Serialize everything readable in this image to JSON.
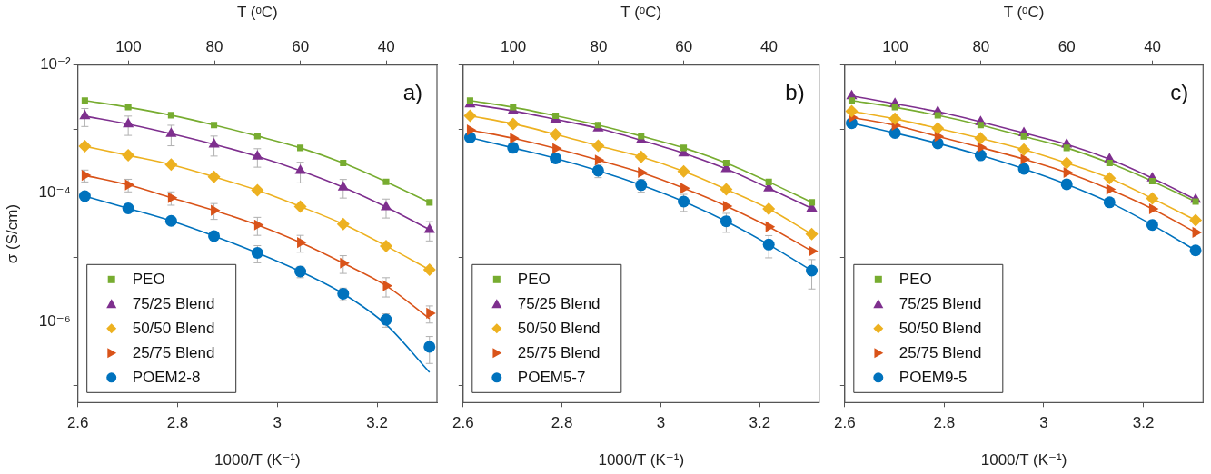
{
  "chart_data": [
    {
      "type": "scatter",
      "xlabel": "1000/T (K⁻¹)",
      "ylabel": "σ (S/cm)",
      "x2label": "T (ᵒC)",
      "annotations": [
        "a)"
      ],
      "legend": "bottom left",
      "log": "y",
      "x": [
        2.614,
        2.701,
        2.787,
        2.873,
        2.96,
        3.046,
        3.132,
        3.218,
        3.305
      ],
      "xlim": [
        2.6,
        3.32
      ],
      "xticks": [
        2.6,
        2.8,
        3,
        3.2
      ],
      "x2lim": [
        111.8,
        28.2
      ],
      "x2ticks": [
        100,
        80,
        60,
        40
      ],
      "ylim": [
        5.4e-08,
        0.01
      ],
      "yticks": [
        {
          "value": 0.01,
          "label": "10⁻²"
        },
        {
          "value": 0.001,
          "label": null
        },
        {
          "value": 0.0001,
          "label": "10⁻⁴"
        },
        {
          "value": 1e-05,
          "label": null
        },
        {
          "value": 1e-06,
          "label": "10⁻⁶"
        },
        {
          "value": 1e-07,
          "label": null
        }
      ],
      "series": [
        {
          "type": "line",
          "color": "#77ac30",
          "values": [
            0.0028,
            0.0022,
            0.00165,
            0.00116,
            0.00078,
            0.00051,
            0.000296,
            0.000151,
            7.2e-05
          ]
        },
        {
          "type": "line",
          "color": "#7e2f8e",
          "values": [
            0.0016,
            0.0012,
            0.00085,
            0.00058,
            0.000375,
            0.000225,
            0.000124,
            6.1e-05,
            2.7e-05
          ]
        },
        {
          "type": "line",
          "color": "#edb120",
          "values": [
            0.00054,
            0.00039,
            0.00028,
            0.00018,
            0.000111,
            6.2e-05,
            3.3e-05,
            1.5e-05,
            6.4e-06
          ]
        },
        {
          "type": "line",
          "color": "#d95319",
          "values": [
            0.00019,
            0.000135,
            8.5e-05,
            5.4e-05,
            3.2e-05,
            1.7e-05,
            8.1e-06,
            3.6e-06,
            1.1e-06
          ]
        },
        {
          "type": "line",
          "color": "#0072bd",
          "values": [
            9e-05,
            5.8e-05,
            3.7e-05,
            2.15e-05,
            1.17e-05,
            6e-06,
            2.7e-06,
            8.9e-07,
            1.6e-07
          ]
        },
        {
          "name": "PEO",
          "marker": "square",
          "color": "#77ac30",
          "values": [
            0.0028,
            0.0022,
            0.00165,
            0.00116,
            0.00078,
            0.00051,
            0.000296,
            0.000151,
            7.2e-05
          ]
        },
        {
          "name": "75/25 Blend",
          "marker": "triangle",
          "color": "#7e2f8e",
          "values": [
            0.0016,
            0.0012,
            0.00085,
            0.00058,
            0.000375,
            0.000225,
            0.000124,
            6.1e-05,
            2.7e-05
          ],
          "errors": [
            0.0005,
            0.0004,
            0.0003,
            0.0002,
            0.00012,
            8e-05,
            4e-05,
            2e-05,
            9e-06
          ]
        },
        {
          "name": "50/50 Blend",
          "marker": "diamond",
          "color": "#edb120",
          "values": [
            0.00054,
            0.00039,
            0.00028,
            0.00018,
            0.000111,
            6.2e-05,
            3.3e-05,
            1.5e-05,
            6.4e-06
          ]
        },
        {
          "name": "25/75 Blend",
          "marker": "triangle-right",
          "color": "#d95319",
          "values": [
            0.00019,
            0.000135,
            8.5e-05,
            5.4e-05,
            3.2e-05,
            1.7e-05,
            8.1e-06,
            3.6e-06,
            1.34e-06
          ],
          "errors": [
            4e-05,
            3e-05,
            2e-05,
            1.5e-05,
            1e-05,
            5e-06,
            2.5e-06,
            1.2e-06,
            4e-07
          ]
        },
        {
          "name": "POEM2-8",
          "marker": "circle",
          "color": "#0072bd",
          "values": [
            9e-05,
            5.8e-05,
            3.7e-05,
            2.15e-05,
            1.17e-05,
            6e-06,
            2.7e-06,
            1.06e-06,
            4e-07
          ],
          "errors": [
            null,
            null,
            null,
            null,
            3.5e-06,
            1.2e-06,
            6e-07,
            2.5e-07,
            1.8e-07
          ]
        }
      ]
    },
    {
      "type": "scatter",
      "xlabel": "1000/T (K⁻¹)",
      "x2label": "T (ᵒC)",
      "annotations": [
        "b)"
      ],
      "legend": "bottom left",
      "log": "y",
      "tick_labels": "x",
      "x": [
        2.614,
        2.701,
        2.787,
        2.873,
        2.96,
        3.046,
        3.132,
        3.218,
        3.305
      ],
      "xlim": [
        2.6,
        3.32
      ],
      "xticks": [
        2.6,
        2.8,
        3,
        3.2
      ],
      "x2lim": [
        111.8,
        28.2
      ],
      "x2ticks": [
        100,
        80,
        60,
        40
      ],
      "ylim": [
        5.4e-08,
        0.01
      ],
      "yticks": [
        {
          "value": 0.01,
          "label": null
        },
        {
          "value": 0.001,
          "label": null
        },
        {
          "value": 0.0001,
          "label": null
        },
        {
          "value": 1e-05,
          "label": null
        },
        {
          "value": 1e-06,
          "label": null
        },
        {
          "value": 1e-07,
          "label": null
        }
      ],
      "series": [
        {
          "type": "line",
          "color": "#77ac30",
          "values": [
            0.0028,
            0.0022,
            0.00162,
            0.00116,
            0.00078,
            0.00051,
            0.000296,
            0.00015,
            7.2e-05
          ]
        },
        {
          "type": "line",
          "color": "#7e2f8e",
          "values": [
            0.00245,
            0.00193,
            0.00142,
            0.00103,
            0.00067,
            0.00042,
            0.00024,
            0.00012,
            5.8e-05
          ]
        },
        {
          "type": "line",
          "color": "#edb120",
          "values": [
            0.00162,
            0.00121,
            0.00083,
            0.00055,
            0.00037,
            0.00022,
            0.000115,
            5.7e-05,
            2.3e-05
          ]
        },
        {
          "type": "line",
          "color": "#d95319",
          "values": [
            0.00097,
            0.00072,
            0.0005,
            0.00033,
            0.00021,
            0.00012,
            6.3e-05,
            3e-05,
            1.25e-05
          ]
        },
        {
          "type": "line",
          "color": "#0072bd",
          "values": [
            0.00074,
            0.00051,
            0.00035,
            0.000225,
            0.000134,
            7.4e-05,
            3.65e-05,
            1.58e-05,
            6.2e-06
          ]
        },
        {
          "name": "PEO",
          "marker": "square",
          "color": "#77ac30",
          "values": [
            0.0028,
            0.0022,
            0.00162,
            0.00116,
            0.00078,
            0.00051,
            0.000296,
            0.00015,
            7.2e-05
          ]
        },
        {
          "name": "75/25 Blend",
          "marker": "triangle",
          "color": "#7e2f8e",
          "values": [
            0.00245,
            0.00193,
            0.00142,
            0.00103,
            0.00067,
            0.00042,
            0.00024,
            0.00012,
            5.8e-05
          ]
        },
        {
          "name": "50/50 Blend",
          "marker": "diamond",
          "color": "#edb120",
          "values": [
            0.00162,
            0.00121,
            0.00083,
            0.00055,
            0.00037,
            0.00022,
            0.000115,
            5.7e-05,
            2.3e-05
          ]
        },
        {
          "name": "25/75 Blend",
          "marker": "triangle-right",
          "color": "#d95319",
          "values": [
            0.00097,
            0.00072,
            0.0005,
            0.00033,
            0.00021,
            0.00012,
            6.3e-05,
            3e-05,
            1.25e-05
          ]
        },
        {
          "name": "POEM5-7",
          "marker": "circle",
          "color": "#0072bd",
          "values": [
            0.00074,
            0.00051,
            0.00035,
            0.000225,
            0.000134,
            7.4e-05,
            3.65e-05,
            1.58e-05,
            6.2e-06
          ],
          "errors": [
            null,
            null,
            null,
            5e-05,
            3e-05,
            2.2e-05,
            1.2e-05,
            6e-06,
            3e-06
          ]
        }
      ]
    },
    {
      "type": "scatter",
      "xlabel": "1000/T (K⁻¹)",
      "x2label": "T (ᵒC)",
      "annotations": [
        "c)"
      ],
      "legend": "bottom left",
      "log": "y",
      "tick_labels": "x",
      "x": [
        2.614,
        2.701,
        2.787,
        2.873,
        2.96,
        3.046,
        3.132,
        3.218,
        3.305
      ],
      "xlim": [
        2.6,
        3.32
      ],
      "xticks": [
        2.6,
        2.8,
        3,
        3.2
      ],
      "x2lim": [
        111.8,
        28.2
      ],
      "x2ticks": [
        100,
        80,
        60,
        40
      ],
      "ylim": [
        5.4e-08,
        0.01
      ],
      "yticks": [
        {
          "value": 0.01,
          "label": null
        },
        {
          "value": 0.001,
          "label": null
        },
        {
          "value": 0.0001,
          "label": null
        },
        {
          "value": 1e-05,
          "label": null
        },
        {
          "value": 1e-06,
          "label": null
        },
        {
          "value": 1e-07,
          "label": null
        }
      ],
      "series": [
        {
          "type": "line",
          "color": "#77ac30",
          "values": [
            0.0028,
            0.0022,
            0.00164,
            0.00116,
            0.00077,
            0.00051,
            0.000296,
            0.000154,
            7.4e-05
          ]
        },
        {
          "type": "line",
          "color": "#7e2f8e",
          "values": [
            0.0033,
            0.0025,
            0.00187,
            0.0013,
            0.00087,
            0.00058,
            0.00034,
            0.000172,
            8e-05
          ]
        },
        {
          "type": "line",
          "color": "#edb120",
          "values": [
            0.0019,
            0.00145,
            0.00103,
            0.00072,
            0.00048,
            0.000296,
            0.000172,
            8.3e-05,
            3.8e-05
          ]
        },
        {
          "type": "line",
          "color": "#d95319",
          "values": [
            0.00153,
            0.00115,
            0.00077,
            0.00052,
            0.00034,
            0.00021,
            0.000115,
            5.7e-05,
            2.45e-05
          ]
        },
        {
          "type": "line",
          "color": "#0072bd",
          "values": [
            0.00124,
            0.00087,
            0.0006,
            0.00039,
            0.00024,
            0.000138,
            7.2e-05,
            3.2e-05,
            1.28e-05
          ]
        },
        {
          "name": "PEO",
          "marker": "square",
          "color": "#77ac30",
          "values": [
            0.0028,
            0.0022,
            0.00164,
            0.00116,
            0.00077,
            0.00051,
            0.000296,
            0.000154,
            7.4e-05
          ]
        },
        {
          "name": "75/25 Blend",
          "marker": "triangle",
          "color": "#7e2f8e",
          "values": [
            0.0033,
            0.0025,
            0.00187,
            0.0013,
            0.00087,
            0.00058,
            0.00034,
            0.000172,
            8e-05
          ]
        },
        {
          "name": "50/50 Blend",
          "marker": "diamond",
          "color": "#edb120",
          "values": [
            0.0019,
            0.00145,
            0.00103,
            0.00072,
            0.00048,
            0.000296,
            0.000172,
            8.3e-05,
            3.8e-05
          ]
        },
        {
          "name": "25/75 Blend",
          "marker": "triangle-right",
          "color": "#d95319",
          "values": [
            0.00153,
            0.00115,
            0.00077,
            0.00052,
            0.00034,
            0.00021,
            0.000115,
            5.7e-05,
            2.45e-05
          ]
        },
        {
          "name": "POEM9-5",
          "marker": "circle",
          "color": "#0072bd",
          "values": [
            0.00124,
            0.00087,
            0.0006,
            0.00039,
            0.00024,
            0.000138,
            7.2e-05,
            3.2e-05,
            1.28e-05
          ]
        }
      ]
    }
  ]
}
